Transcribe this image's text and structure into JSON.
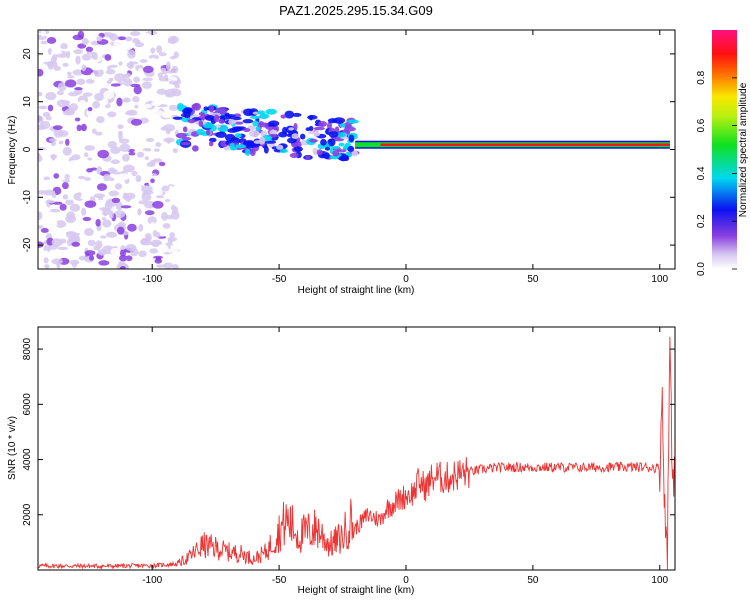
{
  "title": "PAZ1.2025.295.15.34.G09",
  "colors": {
    "snr_line": "#ee3333",
    "axis": "#000000",
    "background": "#ffffff"
  },
  "chart_data": [
    {
      "type": "heatmap",
      "name": "spectrogram",
      "xlabel": "Height of straight line (km)",
      "ylabel": "Frequency (Hz)",
      "xlim": [
        -145,
        106
      ],
      "ylim": [
        -25,
        25
      ],
      "xticks": [
        -100,
        -50,
        0,
        50,
        100
      ],
      "yticks": [
        -20,
        -10,
        0,
        10,
        20
      ],
      "colorbar": {
        "label": "Normalized spectral amplitude",
        "range": [
          0.0,
          1.0
        ],
        "ticks": [
          0.0,
          0.2,
          0.4,
          0.6,
          0.8
        ],
        "colormap": "rainbow (white-violet-blue-cyan-green-yellow-red-magenta)"
      },
      "features": [
        {
          "description": "strong narrow tone",
          "x_from": -20,
          "x_to": 104,
          "frequency_hz": 1,
          "amplitude": 0.95
        },
        {
          "description": "fragmented signal",
          "x_from": -90,
          "x_to": -20,
          "frequency_hz_range": [
            -5,
            8
          ],
          "amplitude": 0.35
        },
        {
          "description": "broadband noise",
          "x_from": -145,
          "x_to": -90,
          "frequency_hz_range": [
            -25,
            25
          ],
          "amplitude": 0.1
        }
      ]
    },
    {
      "type": "line",
      "name": "snr",
      "xlabel": "Height of straight line (km)",
      "ylabel": "SNR (10 * v/v)",
      "xlim": [
        -145,
        106
      ],
      "ylim": [
        0,
        8800
      ],
      "xticks": [
        -100,
        -50,
        0,
        50,
        100
      ],
      "yticks": [
        2000,
        4000,
        6000,
        8000
      ],
      "series": [
        {
          "name": "SNR",
          "x": [
            -145,
            -120,
            -100,
            -90,
            -85,
            -80,
            -75,
            -70,
            -65,
            -60,
            -55,
            -50,
            -47,
            -45,
            -42,
            -40,
            -35,
            -30,
            -25,
            -22,
            -20,
            -15,
            -10,
            -8,
            -5,
            0,
            3,
            5,
            8,
            10,
            12,
            15,
            20,
            25,
            30,
            35,
            40,
            50,
            60,
            70,
            80,
            90,
            95,
            100,
            101,
            102,
            103,
            104,
            105,
            106
          ],
          "y": [
            150,
            140,
            160,
            220,
            500,
            900,
            800,
            650,
            600,
            400,
            650,
            1400,
            1800,
            1600,
            1200,
            1350,
            1500,
            900,
            1200,
            1800,
            1500,
            2000,
            1800,
            2200,
            2400,
            2700,
            2800,
            3200,
            3000,
            3300,
            3400,
            3300,
            3450,
            3550,
            3650,
            3700,
            3720,
            3720,
            3720,
            3710,
            3720,
            3730,
            3720,
            3700,
            6500,
            2000,
            600,
            8600,
            3500,
            3600
          ]
        }
      ]
    }
  ]
}
